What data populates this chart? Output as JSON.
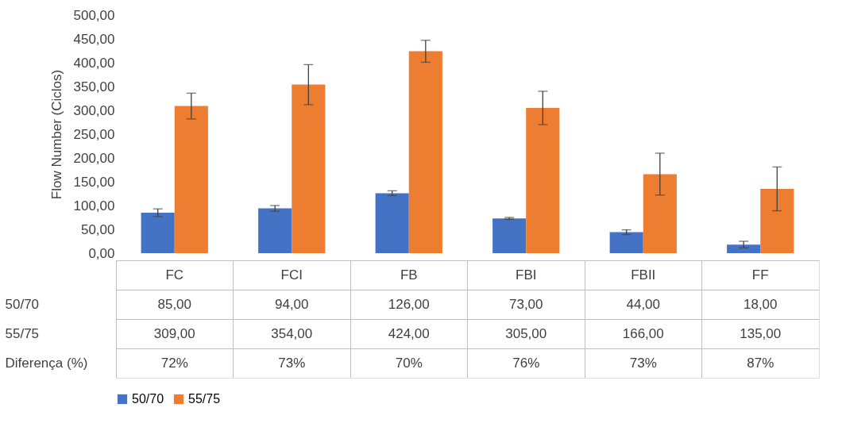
{
  "chart_data": {
    "type": "bar",
    "ylabel": "Flow Number (Ciclos)",
    "categories": [
      "FC",
      "FCI",
      "FB",
      "FBI",
      "FBII",
      "FF"
    ],
    "series": [
      {
        "name": "50/70",
        "color": "#4472c4",
        "values": [
          85,
          94,
          126,
          73,
          44,
          18
        ],
        "errors": [
          8,
          6,
          5,
          2,
          5,
          7
        ],
        "value_labels": [
          "85,00",
          "94,00",
          "126,00",
          "73,00",
          "44,00",
          "18,00"
        ]
      },
      {
        "name": "55/75",
        "color": "#ed7d31",
        "values": [
          309,
          354,
          424,
          305,
          166,
          135
        ],
        "errors": [
          27,
          42,
          23,
          35,
          44,
          46
        ],
        "value_labels": [
          "309,00",
          "354,00",
          "424,00",
          "305,00",
          "166,00",
          "135,00"
        ]
      }
    ],
    "ylim": [
      0,
      500
    ],
    "yticks": [
      {
        "value": 0,
        "label": "0,00"
      },
      {
        "value": 50,
        "label": "50,00"
      },
      {
        "value": 100,
        "label": "100,00"
      },
      {
        "value": 150,
        "label": "150,00"
      },
      {
        "value": 200,
        "label": "200,00"
      },
      {
        "value": 250,
        "label": "250,00"
      },
      {
        "value": 300,
        "label": "300,00"
      },
      {
        "value": 350,
        "label": "350,00"
      },
      {
        "value": 400,
        "label": "400,00"
      },
      {
        "value": 450,
        "label": "450,00"
      },
      {
        "value": 500,
        "label": "500,00"
      }
    ],
    "annotations": [
      "Diferença (%)",
      "72%",
      "73%",
      "70%",
      "76%",
      "73%",
      "87%"
    ],
    "legend": "bottom"
  }
}
